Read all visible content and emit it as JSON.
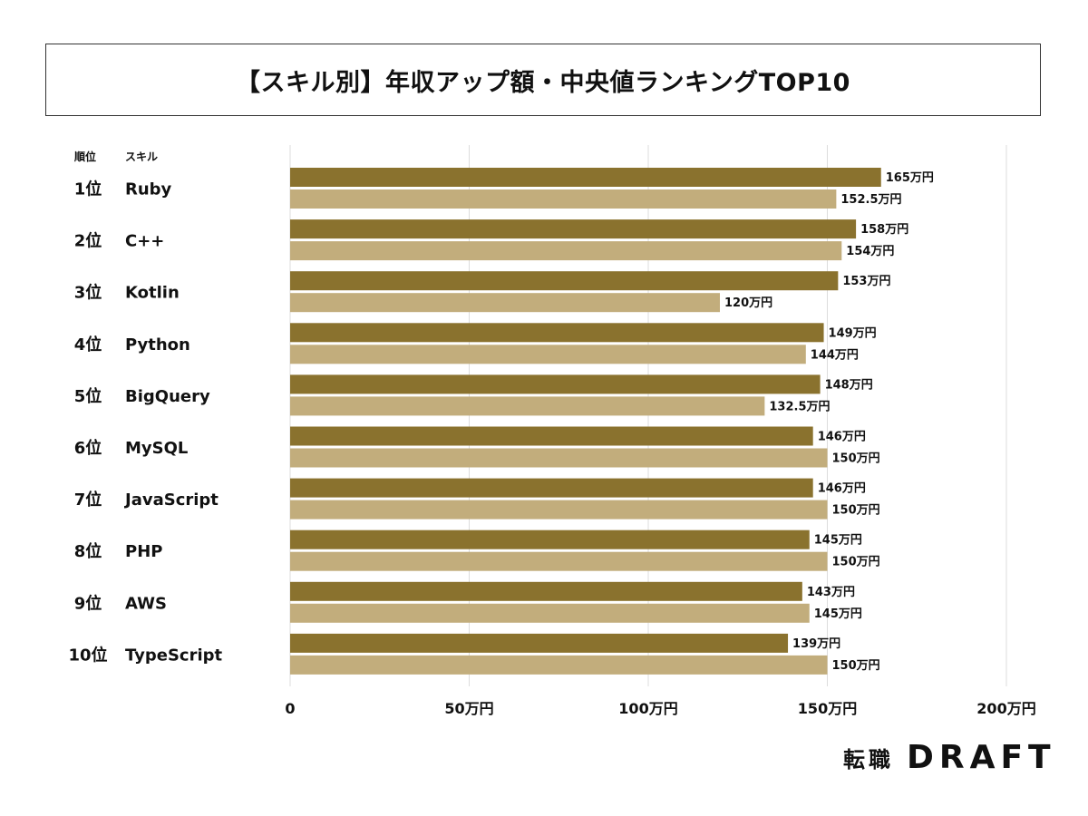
{
  "title": "【スキル別】年収アップ額・中央値ランキングTOP10",
  "headers": {
    "rank": "順位",
    "skill": "スキル"
  },
  "logo": {
    "jp": "転職",
    "en": "DRAFT"
  },
  "colors": {
    "dark": "#8a722e",
    "light": "#c2ad7c",
    "grid": "#dddddd"
  },
  "chart_data": {
    "type": "bar",
    "orientation": "horizontal",
    "ranks": [
      "1位",
      "2位",
      "3位",
      "4位",
      "5位",
      "6位",
      "7位",
      "8位",
      "9位",
      "10位"
    ],
    "categories": [
      "Ruby",
      "C++",
      "Kotlin",
      "Python",
      "BigQuery",
      "MySQL",
      "JavaScript",
      "PHP",
      "AWS",
      "TypeScript"
    ],
    "series": [
      {
        "values": [
          165,
          158,
          153,
          149,
          148,
          146,
          146,
          145,
          143,
          139
        ],
        "labels": [
          "165万円",
          "158万円",
          "153万円",
          "149万円",
          "148万円",
          "146万円",
          "146万円",
          "145万円",
          "143万円",
          "139万円"
        ]
      },
      {
        "values": [
          152.5,
          154,
          120,
          144,
          132.5,
          150,
          150,
          150,
          145,
          150
        ],
        "labels": [
          "152.5万円",
          "154万円",
          "120万円",
          "144万円",
          "132.5万円",
          "150万円",
          "150万円",
          "150万円",
          "145万円",
          "150万円"
        ]
      }
    ],
    "xlim": [
      0,
      200
    ],
    "ticks": [
      0,
      50,
      100,
      150,
      200
    ],
    "tick_labels": [
      "0",
      "50万円",
      "100万円",
      "150万円",
      "200万円"
    ],
    "grid": true
  }
}
